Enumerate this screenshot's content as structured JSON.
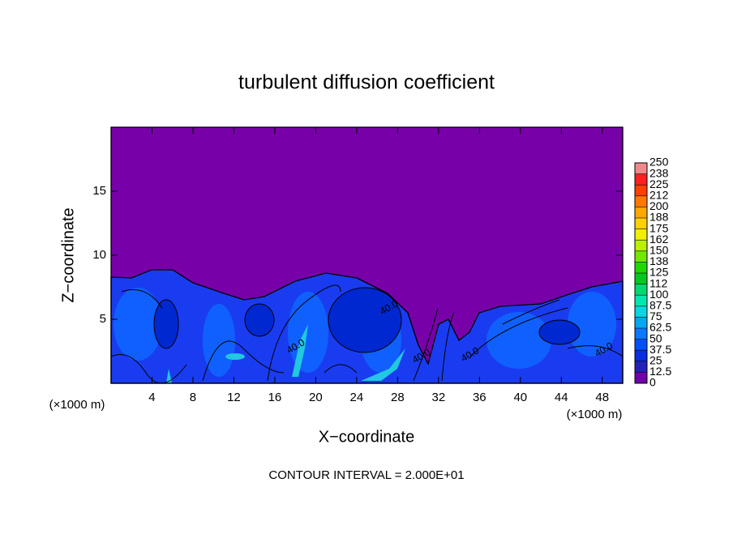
{
  "chart_data": {
    "type": "contour",
    "title": "turbulent diffusion coefficient",
    "xlabel": "X−coordinate",
    "ylabel": "Z−coordinate",
    "x_unit_left": "(×1000 m)",
    "x_unit_right": "(×1000 m)",
    "footer": "CONTOUR INTERVAL = 2.000E+01",
    "xlim": [
      0,
      50
    ],
    "xticks": [
      4,
      8,
      12,
      16,
      20,
      24,
      28,
      32,
      36,
      40,
      44,
      48
    ],
    "ylim": [
      0,
      20
    ],
    "yticks": [
      5,
      10,
      15
    ],
    "contour_labels": [
      "40.0",
      "40.0",
      "40.0",
      "40.0",
      "40.0"
    ],
    "colorbar": {
      "levels": [
        0,
        12.5,
        25,
        37.5,
        50,
        62.5,
        75,
        87.5,
        100,
        {
          "value": 112.5,
          "label": "112"
        },
        125,
        {
          "value": 137.5,
          "label": "138"
        },
        150,
        {
          "value": 162.5,
          "label": "162"
        },
        175,
        {
          "value": 187.5,
          "label": "188"
        },
        200,
        {
          "value": 212.5,
          "label": "212"
        },
        225,
        {
          "value": 237.5,
          "label": "238"
        },
        250
      ],
      "colors": [
        "#7000a8",
        "#2222b8",
        "#0a2ee0",
        "#0050ff",
        "#0a78ff",
        "#00a8f0",
        "#00d8e0",
        "#00e8b0",
        "#00d870",
        "#00c820",
        "#20d800",
        "#70e800",
        "#b8f000",
        "#f0f000",
        "#ffd000",
        "#ffa800",
        "#ff7800",
        "#ff4000",
        "#ff2020",
        "#f08a8a"
      ]
    }
  }
}
